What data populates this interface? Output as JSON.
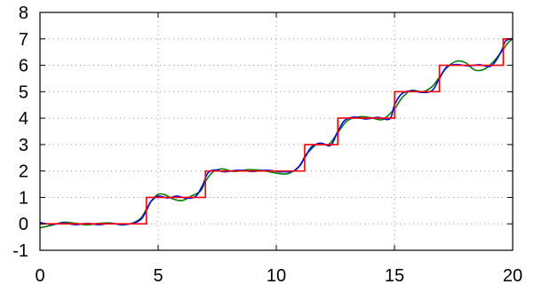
{
  "chart_data": {
    "type": "line",
    "title": "",
    "xlabel": "",
    "ylabel": "",
    "xlim": [
      0,
      20
    ],
    "ylim": [
      -1,
      8
    ],
    "x_ticks": [
      "0",
      "5",
      "10",
      "15",
      "20"
    ],
    "y_ticks": [
      "-1",
      "0",
      "1",
      "2",
      "3",
      "4",
      "5",
      "6",
      "7",
      "8"
    ],
    "grid": true,
    "legend": "none",
    "series": [
      {
        "color": "#ff0000",
        "style": "step",
        "x": [
          0,
          4.5,
          4.5,
          7,
          7,
          11.2,
          11.2,
          12.6,
          12.6,
          15,
          15,
          16.9,
          16.9,
          19.6,
          19.6,
          20
        ],
        "y": [
          0,
          0,
          1,
          1,
          2,
          2,
          3,
          3,
          4,
          4,
          5,
          5,
          6,
          6,
          7,
          7
        ]
      },
      {
        "color": "#008000",
        "style": "smooth",
        "x": [
          0,
          0.5,
          1,
          1.5,
          2,
          2.5,
          3,
          3.5,
          4,
          4.3,
          4.5,
          4.7,
          5,
          5.3,
          5.6,
          6,
          6.4,
          6.8,
          7,
          7.3,
          7.7,
          8.2,
          8.8,
          9.4,
          10,
          10.5,
          11,
          11.2,
          11.5,
          11.8,
          12.2,
          12.6,
          13,
          13.5,
          14,
          14.5,
          15,
          15.3,
          15.7,
          16.2,
          16.6,
          16.9,
          17.2,
          17.6,
          18,
          18.4,
          18.8,
          19.2,
          19.6,
          19.8,
          20
        ],
        "y": [
          -0.15,
          -0.05,
          0.06,
          0.02,
          -0.04,
          0.02,
          0.03,
          -0.04,
          0.06,
          0.25,
          0.55,
          0.85,
          1.12,
          1.1,
          0.95,
          0.88,
          1.05,
          1.25,
          1.6,
          1.95,
          2.08,
          1.98,
          2.05,
          2.02,
          1.92,
          1.9,
          2.2,
          2.55,
          2.85,
          3.05,
          3.0,
          3.45,
          3.9,
          4.05,
          4.02,
          3.95,
          4.35,
          4.75,
          5.05,
          5.0,
          5.2,
          5.55,
          5.9,
          6.15,
          6.1,
          5.82,
          5.85,
          6.15,
          6.6,
          6.85,
          7.0
        ]
      },
      {
        "color": "#0000ff",
        "style": "smooth",
        "x": [
          0,
          0.5,
          1,
          1.5,
          2,
          2.5,
          3,
          3.5,
          4,
          4.3,
          4.5,
          4.7,
          5,
          5.4,
          5.8,
          6.2,
          6.6,
          6.9,
          7.1,
          7.4,
          7.8,
          8.4,
          9,
          9.6,
          10.2,
          10.8,
          11.2,
          11.5,
          11.9,
          12.3,
          12.6,
          12.9,
          13.3,
          13.8,
          14.3,
          14.8,
          15,
          15.3,
          15.7,
          16.2,
          16.6,
          16.9,
          17.2,
          17.6,
          18.1,
          18.6,
          19.1,
          19.5,
          19.7,
          20
        ],
        "y": [
          0.05,
          -0.02,
          0.03,
          -0.03,
          0.02,
          -0.03,
          0.02,
          -0.03,
          0.04,
          0.2,
          0.5,
          0.85,
          1.05,
          0.98,
          1.05,
          0.97,
          1.05,
          1.5,
          1.92,
          2.04,
          1.97,
          2.03,
          1.98,
          2.03,
          1.97,
          2.03,
          2.5,
          2.92,
          3.05,
          2.97,
          3.5,
          3.92,
          4.04,
          3.97,
          4.03,
          3.97,
          4.5,
          4.92,
          5.03,
          4.97,
          5.05,
          5.5,
          5.93,
          6.03,
          5.98,
          6.02,
          5.98,
          6.5,
          6.92,
          7.0
        ]
      }
    ]
  }
}
